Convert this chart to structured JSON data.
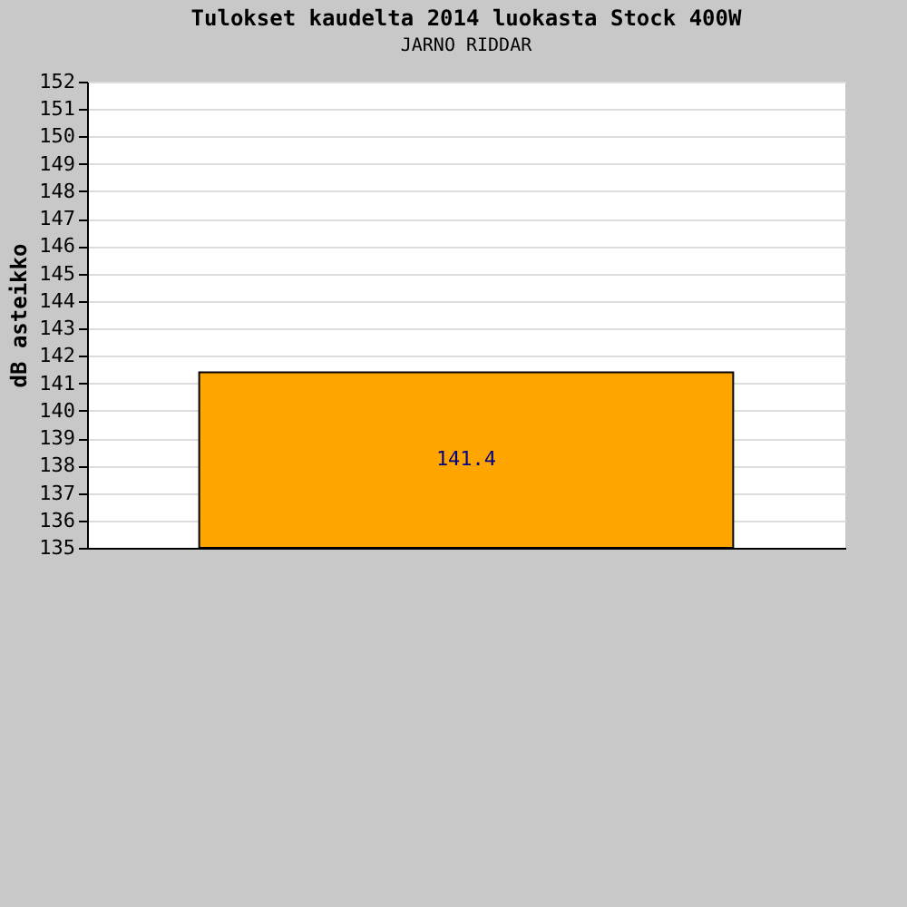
{
  "chart_data": {
    "type": "bar",
    "title": "Tulokset kaudelta 2014 luokasta Stock 400W",
    "subtitle": "JARNO RIDDAR",
    "ylabel": "dB asteikko",
    "categories": [
      null
    ],
    "values": [
      141.4
    ],
    "color": "#ffa500",
    "ylim": [
      135,
      152
    ],
    "yticks": [
      135,
      136,
      137,
      138,
      139,
      140,
      141,
      142,
      143,
      144,
      145,
      146,
      147,
      148,
      149,
      150,
      151,
      152
    ],
    "grid": "y",
    "data_labels": true
  }
}
